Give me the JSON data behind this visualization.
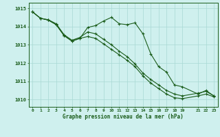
{
  "title": "Graphe pression niveau de la mer (hPa)",
  "bg_color": "#cff0ee",
  "grid_color": "#a8d8d4",
  "line_color": "#1a5c1a",
  "marker": "+",
  "xlim": [
    -0.5,
    23.5
  ],
  "ylim": [
    1009.6,
    1015.3
  ],
  "yticks": [
    1010,
    1011,
    1012,
    1013,
    1014,
    1015
  ],
  "xticks": [
    0,
    1,
    2,
    3,
    4,
    5,
    6,
    7,
    8,
    9,
    10,
    11,
    12,
    13,
    14,
    15,
    16,
    17,
    18,
    19,
    21,
    22,
    23
  ],
  "series1_x": [
    0,
    1,
    2,
    3,
    4,
    5,
    6,
    7,
    8,
    9,
    10,
    11,
    12,
    13,
    14,
    15,
    16,
    17,
    18,
    19,
    21,
    22,
    23
  ],
  "series1_y": [
    1014.8,
    1014.45,
    1014.35,
    1014.1,
    1013.5,
    1013.2,
    1013.35,
    1013.95,
    1014.05,
    1014.3,
    1014.5,
    1014.15,
    1014.1,
    1014.2,
    1013.6,
    1012.5,
    1011.8,
    1011.5,
    1010.8,
    1010.7,
    1010.3,
    1010.5,
    1010.2
  ],
  "series2_x": [
    0,
    1,
    2,
    3,
    4,
    5,
    6,
    7,
    8,
    9,
    10,
    11,
    12,
    13,
    14,
    15,
    16,
    17,
    18,
    19,
    21,
    22,
    23
  ],
  "series2_y": [
    1014.8,
    1014.45,
    1014.35,
    1014.1,
    1013.5,
    1013.2,
    1013.35,
    1013.45,
    1013.35,
    1013.05,
    1012.75,
    1012.45,
    1012.15,
    1011.8,
    1011.3,
    1010.9,
    1010.6,
    1010.3,
    1010.1,
    1010.05,
    1010.2,
    1010.3,
    1010.15
  ],
  "series3_x": [
    0,
    1,
    2,
    3,
    4,
    5,
    6,
    7,
    8,
    9,
    10,
    11,
    12,
    13,
    14,
    15,
    16,
    17,
    18,
    19,
    21,
    22,
    23
  ],
  "series3_y": [
    1014.8,
    1014.45,
    1014.37,
    1014.15,
    1013.55,
    1013.25,
    1013.4,
    1013.7,
    1013.6,
    1013.3,
    1013.0,
    1012.65,
    1012.35,
    1011.95,
    1011.45,
    1011.1,
    1010.8,
    1010.5,
    1010.3,
    1010.2,
    1010.35,
    1010.45,
    1010.2
  ]
}
